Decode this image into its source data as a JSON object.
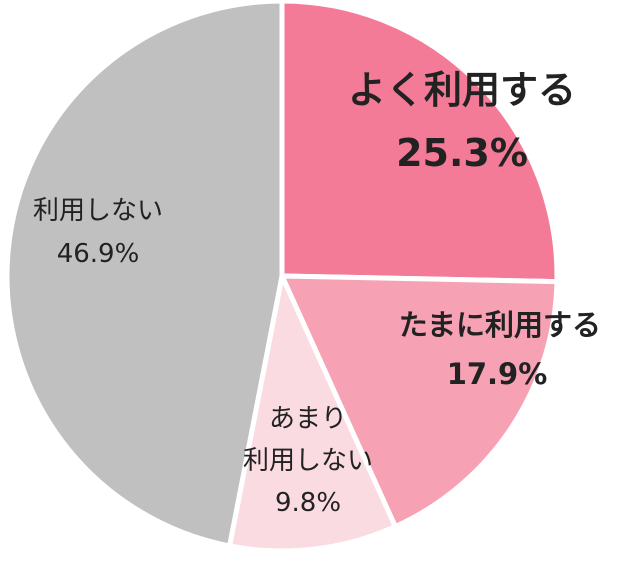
{
  "chart_data": {
    "type": "pie",
    "title": "",
    "slices": [
      {
        "label_lines": [
          "よく利用する"
        ],
        "value_text": "25.3%",
        "value": 25.3,
        "color": "#f47b97"
      },
      {
        "label_lines": [
          "たまに利用する"
        ],
        "value_text": "17.9%",
        "value": 17.9,
        "color": "#f7a2b4"
      },
      {
        "label_lines": [
          "あまり",
          "利用しない"
        ],
        "value_text": "9.8%",
        "value": 9.8,
        "color": "#fadbe2"
      },
      {
        "label_lines": [
          "利用しない"
        ],
        "value_text": "46.9%",
        "value": 46.9,
        "color": "#c0c0c0"
      }
    ],
    "start_angle_deg": 0,
    "direction": "clockwise",
    "legend": "none"
  }
}
